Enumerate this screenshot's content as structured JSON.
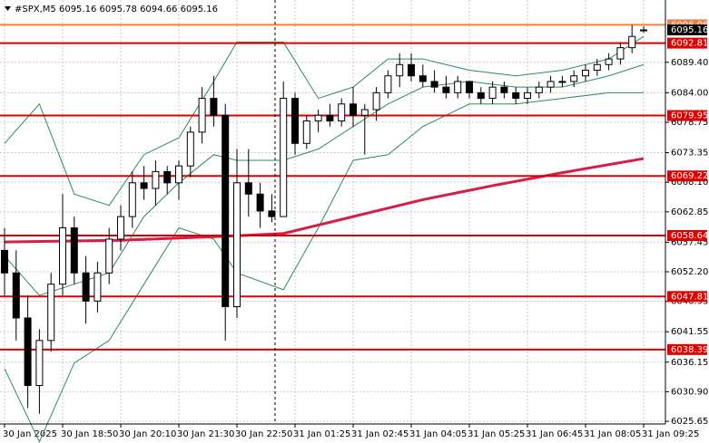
{
  "chart_data": {
    "type": "candlestick",
    "title": "#SPX,M5",
    "categories": [
      "30 Jan 2025",
      null,
      null,
      null,
      null,
      "30 Jan 18:50",
      null,
      null,
      null,
      null,
      "30 Jan 20:10",
      null,
      null,
      null,
      null,
      "30 Jan 21:30",
      null,
      null,
      null,
      null,
      "30 Jan 22:50",
      null,
      null,
      null,
      null,
      "31 Jan 01:25",
      null,
      null,
      null,
      null,
      "31 Jan 02:45",
      null,
      null,
      null,
      null,
      "31 Jan 04:05",
      null,
      null,
      null,
      null,
      "31 Jan 05:25",
      null,
      null,
      null,
      null,
      "31 Jan 06:45",
      null,
      null,
      null,
      null,
      "31 Jan 08:05",
      null,
      null,
      null,
      null,
      "31 Jan 09:25"
    ],
    "open": [
      6056,
      6052,
      6044,
      6032,
      6040,
      6050,
      6060,
      6052,
      6047,
      6052,
      6058,
      6062,
      6068,
      6067,
      6070,
      6068,
      6071,
      6077,
      6083,
      6080,
      6046,
      6068,
      6066,
      6063,
      6062,
      6083,
      6075,
      6079,
      6080,
      6079,
      6082,
      6080,
      6081,
      6084,
      6087,
      6089,
      6087,
      6086,
      6085,
      6084,
      6086,
      6084,
      6083,
      6085,
      6084,
      6083,
      6084,
      6085,
      6086,
      6086,
      6087,
      6088,
      6089,
      6090,
      6092,
      6095.16
    ],
    "high": [
      6060,
      6056,
      6048,
      6042,
      6052,
      6066,
      6062,
      6055,
      6054,
      6060,
      6064,
      6070,
      6071,
      6072,
      6071,
      6072,
      6078,
      6085,
      6087,
      6082,
      6074,
      6074,
      6068,
      6066,
      6086,
      6084,
      6080,
      6081,
      6082,
      6083,
      6085,
      6082,
      6085,
      6088,
      6091,
      6091,
      6089,
      6088,
      6087,
      6087,
      6086,
      6085,
      6086,
      6086,
      6085,
      6085,
      6086,
      6087,
      6087,
      6088,
      6089,
      6090,
      6091,
      6093,
      6096,
      6095.78
    ],
    "low": [
      6048,
      6040,
      6028,
      6027,
      6038,
      6048,
      6050,
      6043,
      6045,
      6050,
      6056,
      6060,
      6065,
      6064,
      6066,
      6065,
      6069,
      6075,
      6078,
      6040,
      6044,
      6062,
      6060,
      6061,
      6062,
      6073,
      6074,
      6077,
      6078,
      6078,
      6078,
      6073,
      6079,
      6083,
      6085,
      6086,
      6085,
      6084,
      6083,
      6083,
      6083,
      6082,
      6082,
      6083,
      6082,
      6082,
      6083,
      6084,
      6085,
      6085,
      6086,
      6087,
      6088,
      6089,
      6091,
      6094.66
    ],
    "close": [
      6052,
      6044,
      6032,
      6040,
      6050,
      6060,
      6052,
      6047,
      6052,
      6058,
      6062,
      6068,
      6067,
      6070,
      6068,
      6071,
      6077,
      6083,
      6080,
      6046,
      6068,
      6066,
      6063,
      6062,
      6083,
      6075,
      6079,
      6080,
      6079,
      6082,
      6080,
      6081,
      6084,
      6087,
      6089,
      6087,
      6086,
      6085,
      6084,
      6086,
      6084,
      6083,
      6085,
      6084,
      6083,
      6084,
      6085,
      6086,
      6086,
      6087,
      6088,
      6089,
      6090,
      6092,
      6094,
      6095.16
    ],
    "indicators": [
      {
        "color": "#2e8b57",
        "x": [
          0,
          3,
          6,
          9,
          12,
          15,
          18,
          20,
          24,
          27,
          30,
          33,
          36,
          40,
          44,
          48,
          52,
          55
        ],
        "values": [
          6075,
          6082,
          6066,
          6064,
          6073,
          6076,
          6086,
          6093,
          6093,
          6083,
          6085,
          6090,
          6090,
          6088,
          6087,
          6088,
          6090,
          6094
        ]
      },
      {
        "color": "#2e8b57",
        "x": [
          0,
          3,
          6,
          9,
          12,
          15,
          18,
          20,
          24,
          27,
          30,
          33,
          36,
          40,
          44,
          48,
          52,
          55
        ],
        "values": [
          6055,
          6048,
          6050,
          6052,
          6062,
          6068,
          6073,
          6072,
          6072,
          6074,
          6078,
          6082,
          6085,
          6086,
          6085,
          6085,
          6087,
          6089
        ]
      },
      {
        "color": "#2e8b57",
        "x": [
          0,
          3,
          6,
          9,
          12,
          15,
          18,
          20,
          24,
          27,
          30,
          33,
          36,
          40,
          44,
          48,
          52,
          55
        ],
        "values": [
          6035,
          6022,
          6036,
          6040,
          6050,
          6060,
          6058,
          6052,
          6049,
          6060,
          6072,
          6073,
          6078,
          6082,
          6082,
          6083,
          6084,
          6084
        ]
      },
      {
        "color": "#d81b47",
        "x": [
          0,
          10,
          20,
          24,
          30,
          36,
          42,
          48,
          55
        ],
        "values": [
          6057.5,
          6057.8,
          6058.6,
          6059.0,
          6062.0,
          6065.0,
          6067.5,
          6069.8,
          6072.3
        ]
      }
    ],
    "levels": [
      6092.81,
      6079.95,
      6069.22,
      6058.64,
      6047.81,
      6038.39
    ],
    "level_color": "#e00000",
    "ask": 6096.06,
    "ask_color": "#f08040",
    "ylim": [
      6025.17,
      6100.47
    ],
    "yticks": [
      {
        "value": 6089.4,
        "label": "6089.40"
      },
      {
        "value": 6084,
        "label": "6084.00"
      },
      6078.75,
      6073.35,
      {
        "value": 6068.1,
        "label": "6068.10"
      },
      6062.85,
      6057.45,
      {
        "value": 6052.2,
        "label": "6052.20"
      },
      6046.95,
      6041.55,
      6036.15,
      {
        "value": 6030.9,
        "label": "6030.90"
      },
      6025.65
    ],
    "grid": true
  }
}
